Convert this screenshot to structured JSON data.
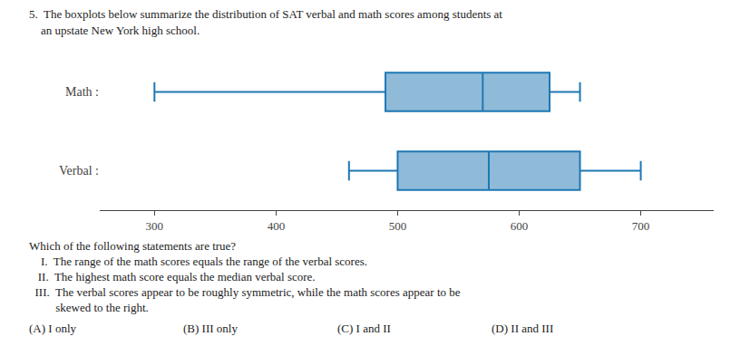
{
  "chart_data": {
    "type": "box",
    "orientation": "horizontal",
    "title": "5.  The boxplots below summarize the distribution of SAT verbal and math scores among students at",
    "subtitle": "    an upstate New York high school.",
    "categories": [
      "Math :",
      "Verbal :"
    ],
    "values": [
      {
        "min": 300,
        "q1": 490,
        "median": 570,
        "q3": 625,
        "max": 650
      },
      {
        "min": 460,
        "q1": 500,
        "median": 575,
        "q3": 650,
        "max": 700
      }
    ],
    "xlim": [
      255,
      760
    ],
    "xticks": [
      300,
      400,
      500,
      600,
      700
    ],
    "grid": false,
    "annotations": [
      "Which of the following statements are true?",
      "    I.  The range of the math scores equals the range of the verbal scores.",
      "   II.  The highest math score equals the median verbal score.",
      "  III.  The verbal scores appear to be roughly symmetric, while the math scores appear to be",
      "         skewed to the right.",
      [
        "(A) I only",
        "(B) III only",
        "(C) I and II",
        "(D) II and III"
      ]
    ]
  }
}
